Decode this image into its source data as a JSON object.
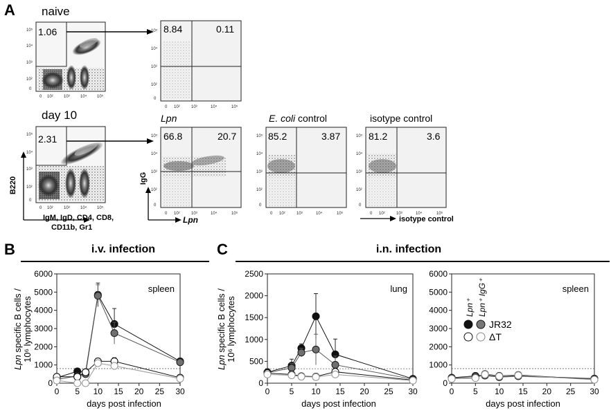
{
  "panels": {
    "A": "A",
    "B": "B",
    "C": "C"
  },
  "flow": {
    "rows": [
      {
        "label": "naive",
        "gate": {
          "value": "1.06",
          "xticks": [
            "0",
            "10²",
            "10³",
            "10⁴",
            "10⁵"
          ],
          "yticks": [
            "10⁵",
            "10⁴",
            "10³",
            "10²",
            "0"
          ]
        },
        "plots": [
          {
            "header": "",
            "header_italic": "",
            "header_rest": "",
            "ul": "8.84",
            "ur": "0.11"
          }
        ]
      },
      {
        "label": "day 10",
        "gate": {
          "value": "2.31",
          "xticks": [
            "0",
            "10²",
            "10³",
            "10⁴",
            "10⁵"
          ],
          "yticks": [
            "10⁵",
            "10⁴",
            "10³",
            "10²",
            "0"
          ]
        },
        "plots": [
          {
            "header_italic": "Lpn",
            "header_rest": "",
            "ul": "66.8",
            "ur": "20.7"
          },
          {
            "header_italic": "E. coli",
            "header_rest": " control",
            "ul": "85.2",
            "ur": "3.87"
          },
          {
            "header_italic": "",
            "header_rest": "isotype control",
            "ul": "81.2",
            "ur": "3.6"
          }
        ]
      }
    ],
    "axis_labels": {
      "gate_y": "B220",
      "gate_x_line1": "IgM, IgD, CD4, CD8,",
      "gate_x_line2": "CD11b, Gr1",
      "igg_y": "IgG",
      "lpn_x": "Lpn",
      "iso_x": "isotype control"
    }
  },
  "headers": {
    "iv": "i.v. infection",
    "in": "i.n. infection"
  },
  "shared_axis": {
    "ylabel_italic": "Lpn",
    "ylabel_line1_rest": " specific B cells /",
    "ylabel_line2": "10⁶ lymphocytes",
    "xlabel": "days post infection"
  },
  "legend": {
    "col1": "Lpn⁺",
    "col2": "Lpn⁺ IgG⁺",
    "row1": "JR32",
    "row2": "ΔT"
  },
  "chart_data": [
    {
      "type": "line",
      "title": "spleen",
      "section": "i.v. infection",
      "xlabel": "days post infection",
      "ylabel": "Lpn specific B cells / 10^6 lymphocytes",
      "xlim": [
        0,
        30
      ],
      "ylim": [
        0,
        6000
      ],
      "xticks": [
        0,
        5,
        10,
        15,
        20,
        25,
        30
      ],
      "yticks": [
        0,
        1000,
        2000,
        3000,
        4000,
        5000,
        6000
      ],
      "threshold": 800,
      "series": [
        {
          "name": "JR32 Lpn+",
          "x": [
            0,
            5,
            7,
            10,
            14,
            30
          ],
          "y": [
            300,
            650,
            600,
            4850,
            3250,
            1200
          ],
          "err": [
            0,
            0,
            0,
            650,
            850,
            150
          ]
        },
        {
          "name": "JR32 Lpn+ IgG+",
          "x": [
            0,
            5,
            7,
            10,
            14,
            30
          ],
          "y": [
            200,
            400,
            500,
            4800,
            2750,
            1150
          ],
          "err": [
            0,
            0,
            0,
            600,
            600,
            150
          ]
        },
        {
          "name": "ΔT Lpn+",
          "x": [
            0,
            5,
            7,
            10,
            14,
            30
          ],
          "y": [
            350,
            350,
            600,
            1200,
            1200,
            300
          ],
          "err": [
            0,
            0,
            0,
            150,
            200,
            100
          ]
        },
        {
          "name": "ΔT Lpn+ IgG+",
          "x": [
            0,
            5,
            7,
            10,
            14,
            30
          ],
          "y": [
            150,
            0,
            0,
            1100,
            950,
            250
          ],
          "err": [
            0,
            0,
            0,
            100,
            150,
            80
          ]
        }
      ]
    },
    {
      "type": "line",
      "title": "lung",
      "section": "i.n. infection",
      "xlabel": "days post infection",
      "ylabel": "Lpn specific B cells / 10^6 lymphocytes",
      "xlim": [
        0,
        30
      ],
      "ylim": [
        0,
        2500
      ],
      "xticks": [
        0,
        5,
        10,
        15,
        20,
        25,
        30
      ],
      "yticks": [
        0,
        500,
        1000,
        1500,
        2000,
        2500
      ],
      "threshold": 330,
      "series": [
        {
          "name": "JR32 Lpn+",
          "x": [
            0,
            5,
            7,
            10,
            14,
            30
          ],
          "y": [
            250,
            400,
            800,
            1530,
            660,
            100
          ],
          "err": [
            80,
            150,
            100,
            520,
            350,
            30
          ]
        },
        {
          "name": "JR32 Lpn+ IgG+",
          "x": [
            0,
            5,
            7,
            10,
            14,
            30
          ],
          "y": [
            240,
            350,
            700,
            770,
            420,
            90
          ],
          "err": [
            60,
            100,
            100,
            350,
            200,
            30
          ]
        },
        {
          "name": "ΔT Lpn+",
          "x": [
            0,
            5,
            7,
            10,
            14,
            30
          ],
          "y": [
            230,
            200,
            160,
            150,
            260,
            70
          ],
          "err": [
            50,
            50,
            40,
            60,
            80,
            20
          ]
        },
        {
          "name": "ΔT Lpn+ IgG+",
          "x": [
            0,
            5,
            7,
            10,
            14,
            30
          ],
          "y": [
            200,
            180,
            150,
            140,
            200,
            60
          ],
          "err": [
            40,
            40,
            30,
            50,
            60,
            20
          ]
        }
      ]
    },
    {
      "type": "line",
      "title": "spleen",
      "section": "i.n. infection",
      "xlabel": "days post infection",
      "xlim": [
        0,
        30
      ],
      "ylim": [
        0,
        6000
      ],
      "xticks": [
        0,
        5,
        10,
        15,
        20,
        25,
        30
      ],
      "yticks": [
        0,
        1000,
        2000,
        3000,
        4000,
        5000,
        6000
      ],
      "threshold": 800,
      "series": [
        {
          "name": "JR32 Lpn+",
          "x": [
            0,
            5,
            7,
            10,
            14,
            30
          ],
          "y": [
            300,
            400,
            450,
            350,
            400,
            250
          ],
          "err": [
            50,
            80,
            80,
            60,
            60,
            40
          ]
        },
        {
          "name": "JR32 Lpn+ IgG+",
          "x": [
            0,
            5,
            7,
            10,
            14,
            30
          ],
          "y": [
            280,
            380,
            420,
            330,
            380,
            240
          ],
          "err": [
            50,
            70,
            70,
            60,
            60,
            40
          ]
        },
        {
          "name": "ΔT Lpn+",
          "x": [
            0,
            5,
            7,
            10,
            14,
            30
          ],
          "y": [
            250,
            300,
            500,
            400,
            450,
            200
          ],
          "err": [
            40,
            60,
            90,
            70,
            70,
            40
          ]
        },
        {
          "name": "ΔT Lpn+ IgG+",
          "x": [
            0,
            5,
            7,
            10,
            14,
            30
          ],
          "y": [
            240,
            280,
            480,
            380,
            430,
            190
          ],
          "err": [
            40,
            60,
            90,
            70,
            70,
            40
          ]
        }
      ]
    }
  ]
}
